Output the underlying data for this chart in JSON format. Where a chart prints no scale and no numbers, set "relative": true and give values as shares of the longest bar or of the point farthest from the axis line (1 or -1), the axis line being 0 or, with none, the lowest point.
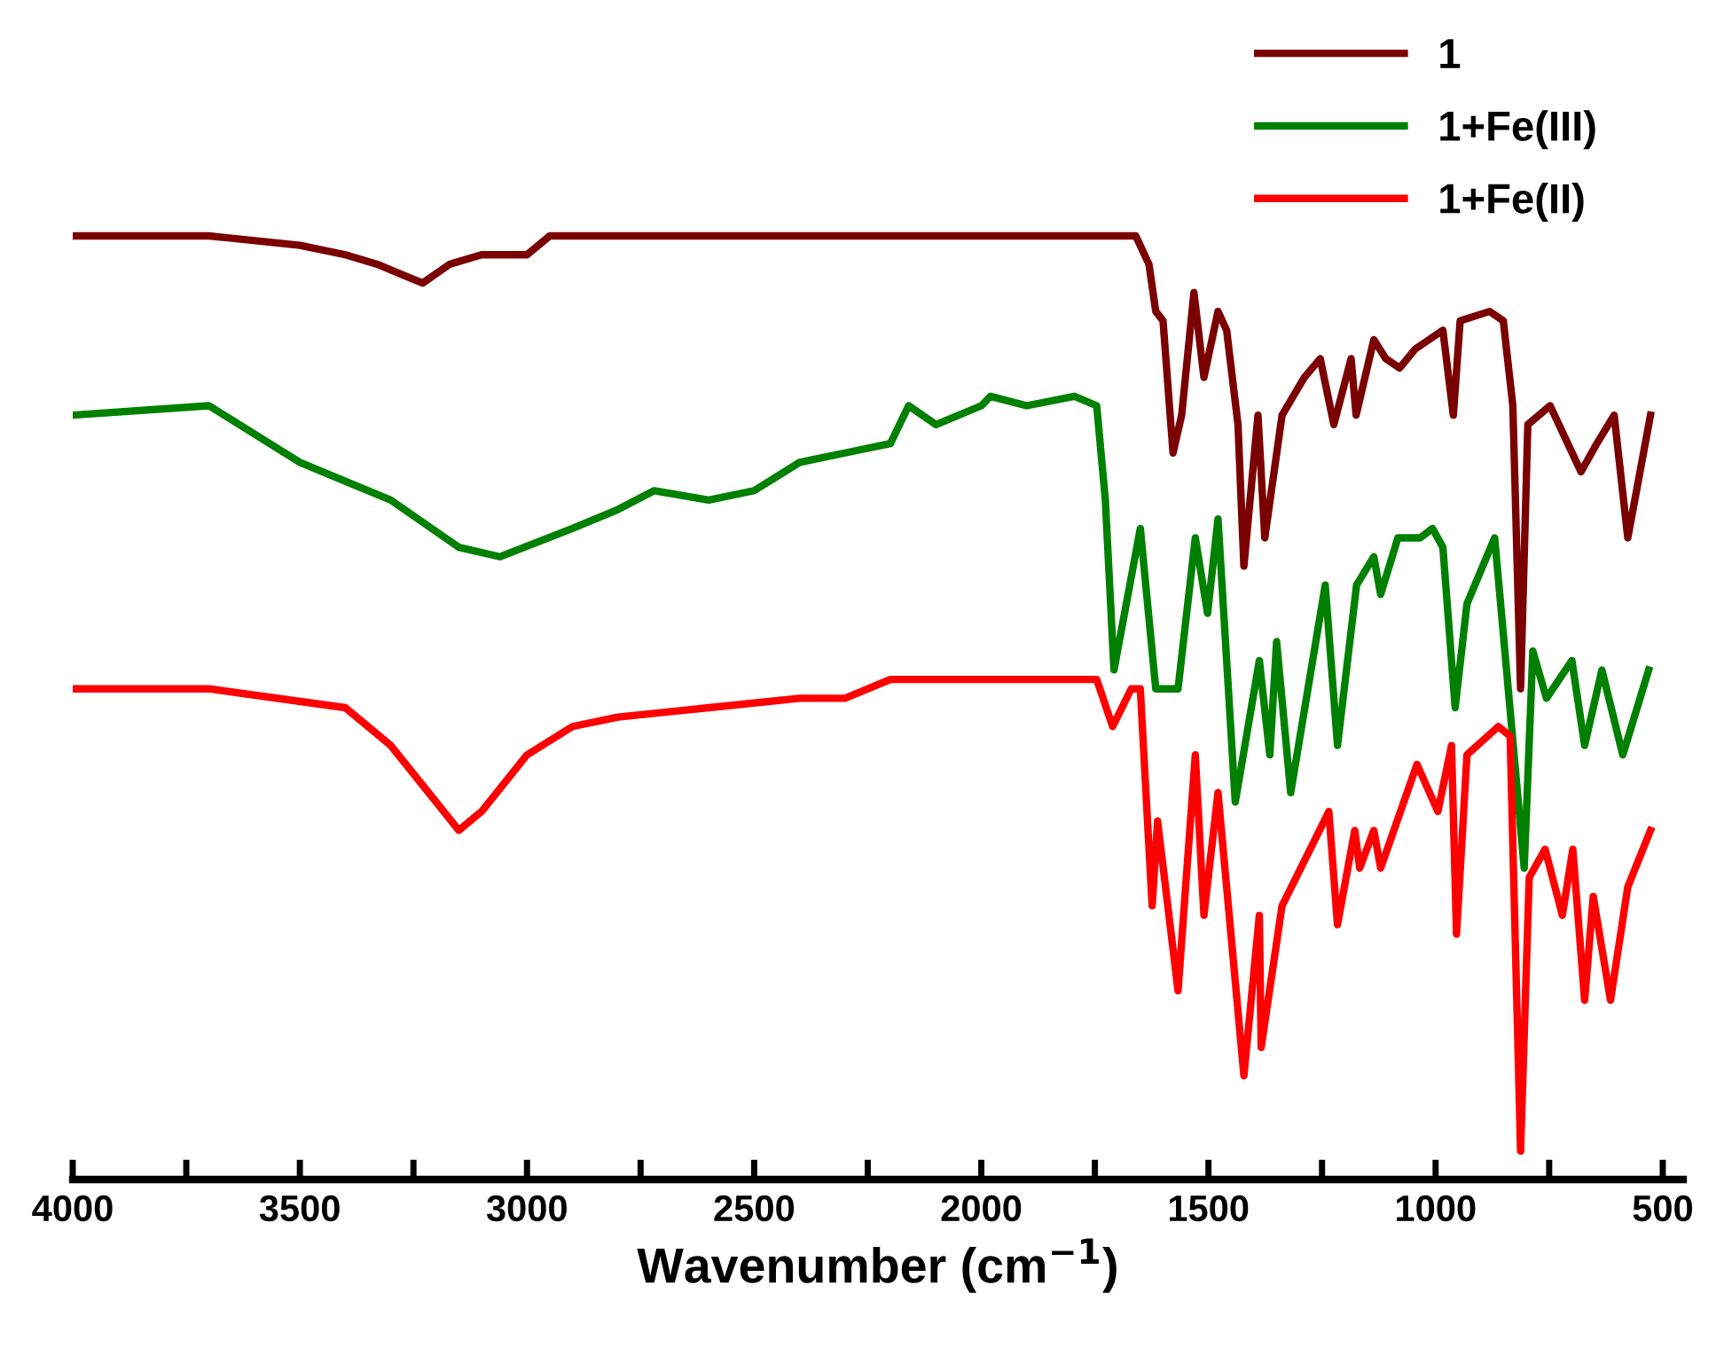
{
  "chart_data": {
    "type": "line",
    "relative": true,
    "xlabel": "Wavenumber (cm$^{−1}$)",
    "xlim": [
      4000,
      455
    ],
    "xticks": [
      4000,
      {
        "value": 3750,
        "label": null
      },
      3500,
      {
        "value": 3250,
        "label": null
      },
      3000,
      {
        "value": 2750,
        "label": null
      },
      2500,
      {
        "value": 2250,
        "label": null
      },
      2000,
      {
        "value": 1750,
        "label": null
      },
      1500,
      {
        "value": 1250,
        "label": null
      },
      1000,
      {
        "value": 750,
        "label": null
      },
      500
    ],
    "tick_labels": "x",
    "grid": false,
    "legend": "top right",
    "line_style": "solid",
    "marker": "none",
    "series": [
      {
        "name": "1",
        "color": "#7b0000",
        "x": [
          4000,
          3700,
          3500,
          3400,
          3330,
          3280,
          3230,
          3170,
          3100,
          3000,
          2950,
          2800,
          2500,
          2200,
          2000,
          1750,
          1660,
          1631,
          1616,
          1600,
          1578,
          1559,
          1532,
          1510,
          1479,
          1460,
          1435,
          1422,
          1391,
          1376,
          1338,
          1289,
          1254,
          1224,
          1186,
          1175,
          1136,
          1110,
          1079,
          1045,
          984,
          961,
          946,
          881,
          851,
          830,
          813,
          797,
          748,
          680,
          645,
          607,
          577,
          527
        ],
        "values": [
          1.0,
          1.0,
          0.99,
          0.98,
          0.97,
          0.96,
          0.95,
          0.97,
          0.98,
          0.98,
          1.0,
          1.0,
          1.0,
          1.0,
          1.0,
          1.0,
          1.0,
          0.97,
          0.92,
          0.91,
          0.77,
          0.81,
          0.94,
          0.85,
          0.92,
          0.9,
          0.8,
          0.65,
          0.81,
          0.68,
          0.81,
          0.85,
          0.87,
          0.8,
          0.87,
          0.81,
          0.89,
          0.87,
          0.86,
          0.88,
          0.9,
          0.81,
          0.91,
          0.92,
          0.91,
          0.82,
          0.52,
          0.8,
          0.82,
          0.75,
          0.78,
          0.81,
          0.68,
          0.81
        ]
      },
      {
        "name": "1+Fe(III)",
        "color": "#008000",
        "x": [
          4000,
          3700,
          3500,
          3300,
          3150,
          3060,
          2900,
          2800,
          2720,
          2600,
          2500,
          2400,
          2300,
          2200,
          2160,
          2100,
          2000,
          1980,
          1900,
          1795,
          1746,
          1727,
          1708,
          1650,
          1616,
          1567,
          1529,
          1502,
          1479,
          1441,
          1388,
          1365,
          1350,
          1319,
          1243,
          1216,
          1174,
          1136,
          1121,
          1083,
          1034,
          1007,
          984,
          957,
          931,
          870,
          855,
          805,
          786,
          756,
          700,
          672,
          634,
          588,
          531
        ],
        "values": [
          0.81,
          0.82,
          0.76,
          0.72,
          0.67,
          0.66,
          0.69,
          0.71,
          0.73,
          0.72,
          0.73,
          0.76,
          0.77,
          0.78,
          0.82,
          0.8,
          0.82,
          0.83,
          0.82,
          0.83,
          0.82,
          0.72,
          0.54,
          0.69,
          0.52,
          0.52,
          0.68,
          0.6,
          0.7,
          0.4,
          0.55,
          0.45,
          0.57,
          0.41,
          0.63,
          0.46,
          0.63,
          0.66,
          0.62,
          0.68,
          0.68,
          0.69,
          0.67,
          0.5,
          0.61,
          0.68,
          0.6,
          0.33,
          0.56,
          0.51,
          0.55,
          0.46,
          0.54,
          0.45,
          0.54
        ]
      },
      {
        "name": "1+Fe(II)",
        "color": "#ff0000",
        "x": [
          4000,
          3700,
          3400,
          3300,
          3200,
          3150,
          3100,
          3000,
          2900,
          2800,
          2600,
          2400,
          2300,
          2200,
          2100,
          2000,
          1871,
          1746,
          1711,
          1670,
          1650,
          1624,
          1612,
          1567,
          1529,
          1510,
          1479,
          1422,
          1388,
          1384,
          1338,
          1235,
          1216,
          1178,
          1167,
          1136,
          1121,
          1041,
          995,
          965,
          954,
          931,
          862,
          836,
          813,
          794,
          759,
          721,
          698,
          672,
          653,
          615,
          577,
          527
        ],
        "values": [
          0.52,
          0.52,
          0.5,
          0.46,
          0.4,
          0.37,
          0.39,
          0.45,
          0.48,
          0.49,
          0.5,
          0.51,
          0.51,
          0.53,
          0.53,
          0.53,
          0.53,
          0.53,
          0.48,
          0.52,
          0.52,
          0.29,
          0.38,
          0.2,
          0.45,
          0.28,
          0.41,
          0.11,
          0.28,
          0.14,
          0.29,
          0.39,
          0.27,
          0.37,
          0.33,
          0.37,
          0.33,
          0.44,
          0.39,
          0.46,
          0.26,
          0.45,
          0.48,
          0.47,
          0.03,
          0.32,
          0.35,
          0.28,
          0.35,
          0.19,
          0.3,
          0.19,
          0.31,
          0.37
        ]
      }
    ]
  }
}
